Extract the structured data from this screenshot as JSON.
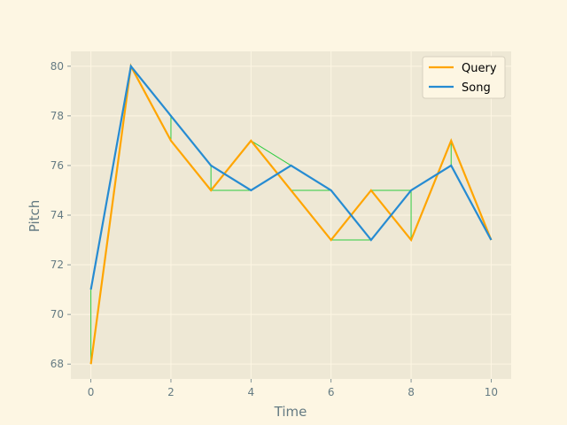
{
  "chart_data": {
    "type": "line",
    "title": "",
    "xlabel": "Time",
    "ylabel": "Pitch",
    "xlim": [
      -0.5,
      10.5
    ],
    "ylim": [
      67.4,
      80.6
    ],
    "xticks": [
      0,
      2,
      4,
      6,
      8,
      10
    ],
    "yticks": [
      68,
      70,
      72,
      74,
      76,
      78,
      80
    ],
    "grid": true,
    "legend_position": "top-right",
    "background": "#eee8d5",
    "page_background": "#fdf6e3",
    "series": [
      {
        "name": "Query",
        "color": "#ffa500",
        "x": [
          0,
          1,
          2,
          3,
          4,
          5,
          6,
          7,
          8,
          9,
          10
        ],
        "y": [
          68,
          80,
          77,
          75,
          77,
          75,
          73,
          75,
          73,
          77,
          73
        ]
      },
      {
        "name": "Song",
        "color": "#268bd2",
        "x": [
          0,
          1,
          2,
          3,
          4,
          5,
          6,
          7,
          8,
          9,
          10
        ],
        "y": [
          71,
          80,
          78,
          76,
          75,
          76,
          75,
          73,
          75,
          76,
          73
        ]
      }
    ],
    "alignment": {
      "color": "#2ecc40",
      "pairs": [
        [
          [
            0,
            68
          ],
          [
            0,
            71
          ]
        ],
        [
          [
            1,
            80
          ],
          [
            1,
            80
          ]
        ],
        [
          [
            2,
            77
          ],
          [
            2,
            78
          ]
        ],
        [
          [
            3,
            75
          ],
          [
            3,
            76
          ]
        ],
        [
          [
            3,
            75
          ],
          [
            4,
            75
          ]
        ],
        [
          [
            4,
            77
          ],
          [
            5,
            76
          ]
        ],
        [
          [
            5,
            75
          ],
          [
            6,
            75
          ]
        ],
        [
          [
            6,
            73
          ],
          [
            7,
            73
          ]
        ],
        [
          [
            7,
            75
          ],
          [
            8,
            75
          ]
        ],
        [
          [
            8,
            73
          ],
          [
            8,
            75
          ]
        ],
        [
          [
            9,
            77
          ],
          [
            9,
            76
          ]
        ],
        [
          [
            10,
            73
          ],
          [
            10,
            73
          ]
        ]
      ]
    }
  }
}
